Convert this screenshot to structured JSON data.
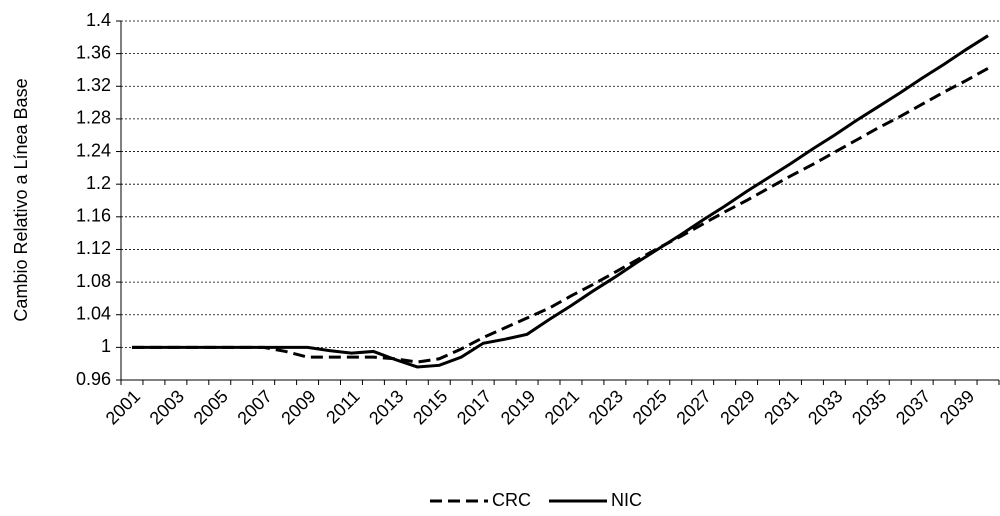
{
  "chart_data": {
    "type": "line",
    "y_label": "Cambio Relativo a Línea Base",
    "categories": [
      "2001",
      null,
      "2003",
      null,
      "2005",
      null,
      "2007",
      null,
      "2009",
      null,
      "2011",
      null,
      "2013",
      null,
      "2015",
      null,
      "2017",
      null,
      "2019",
      null,
      "2021",
      null,
      "2023",
      null,
      "2025",
      null,
      "2027",
      null,
      "2029",
      null,
      "2031",
      null,
      "2033",
      null,
      "2035",
      null,
      "2037",
      null,
      "2039",
      null
    ],
    "series": [
      {
        "name": "CRC",
        "color": "#000000",
        "dash": "dashed",
        "values": [
          1.0,
          1.0,
          1.0,
          1.0,
          1.0,
          1.0,
          1.0,
          0.995,
          0.988,
          0.988,
          0.988,
          0.988,
          0.986,
          0.982,
          0.986,
          0.998,
          1.012,
          1.024,
          1.036,
          1.048,
          1.063,
          1.077,
          1.092,
          1.107,
          1.122,
          1.136,
          1.151,
          1.166,
          1.18,
          1.195,
          1.21,
          1.224,
          1.239,
          1.254,
          1.269,
          1.283,
          1.298,
          1.313,
          1.327,
          1.342
        ]
      },
      {
        "name": "NIC",
        "color": "#000000",
        "dash": "solid",
        "values": [
          1.0,
          1.0,
          1.0,
          1.0,
          1.0,
          1.0,
          1.0,
          1.0,
          1.0,
          0.996,
          0.993,
          0.995,
          0.985,
          0.976,
          0.978,
          0.988,
          1.005,
          1.01,
          1.016,
          1.034,
          1.051,
          1.069,
          1.086,
          1.104,
          1.121,
          1.138,
          1.156,
          1.173,
          1.191,
          1.208,
          1.225,
          1.243,
          1.26,
          1.278,
          1.295,
          1.312,
          1.33,
          1.347,
          1.365,
          1.382
        ]
      }
    ],
    "ylim": [
      0.96,
      1.4
    ],
    "yticks": [
      0.96,
      1,
      1.04,
      1.08,
      1.12,
      1.16,
      1.2,
      1.24,
      1.28,
      1.32,
      1.36,
      1.4
    ],
    "grid": true,
    "legend": "bottom"
  }
}
